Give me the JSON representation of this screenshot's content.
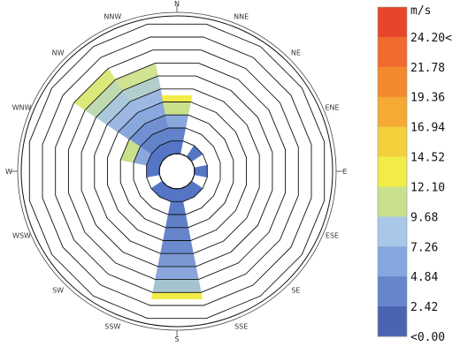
{
  "chart_data": {
    "type": "wind-rose",
    "directions": [
      "N",
      "NNE",
      "NE",
      "ENE",
      "E",
      "ESE",
      "SE",
      "SSE",
      "S",
      "SSW",
      "SW",
      "WSW",
      "W",
      "WNW",
      "NW",
      "NNW"
    ],
    "radial_ring_count": 10,
    "legend": {
      "unit": "m/s",
      "labels": [
        "24.20<",
        "21.78",
        "19.36",
        "16.94",
        "14.52",
        "12.10",
        "9.68",
        "7.26",
        "4.84",
        "2.42",
        "<0.00"
      ],
      "colors": [
        "#e8462a",
        "#ef6a2c",
        "#f2892f",
        "#f4aa33",
        "#f4cf3c",
        "#f1ec48",
        "#c9e08d",
        "#a9c7e8",
        "#84a7df",
        "#6685cb",
        "#4b64b2"
      ]
    },
    "petals": [
      {
        "direction": "S",
        "rings": 8.5,
        "colors": [
          "#5576c4",
          "#5a7ac5",
          "#5f7fc7",
          "#6584ca",
          "#6a8acd",
          "#7b98d4",
          "#8aa6dc",
          "#a6c4d0",
          "#f1ec48"
        ]
      },
      {
        "direction": "NW",
        "rings": 8.0,
        "colors": [
          "#5576c4",
          "#6282ca",
          "#7290d2",
          "#8aa8de",
          "#9cb8e3",
          "#aac8dc",
          "#bfdab0",
          "#dbe87a",
          "#f1ec48"
        ]
      },
      {
        "direction": "NNW",
        "rings": 7.0,
        "colors": [
          "#5576c4",
          "#6282ca",
          "#7290d2",
          "#8aa8de",
          "#9cb8e3",
          "#b2cfcd",
          "#d0e390",
          "#f1ec48"
        ]
      },
      {
        "direction": "WNW",
        "rings": 3.0,
        "colors": [
          "#5576c4",
          "#8aa8de",
          "#c9e08d"
        ]
      },
      {
        "direction": "N",
        "rings": 4.5,
        "colors": [
          "#5576c4",
          "#6282ca",
          "#8aa8de",
          "#c9e08d",
          "#f1ec48"
        ]
      },
      {
        "direction": "E",
        "rings": 1.0,
        "colors": [
          "#5576c4"
        ]
      },
      {
        "direction": "SE",
        "rings": 1.0,
        "colors": [
          "#5576c4"
        ]
      },
      {
        "direction": "SW",
        "rings": 1.0,
        "colors": [
          "#5576c4"
        ]
      },
      {
        "direction": "W",
        "rings": 1.0,
        "colors": [
          "#5576c4"
        ]
      },
      {
        "direction": "NE",
        "rings": 1.0,
        "colors": [
          "#5576c4"
        ]
      },
      {
        "direction": "SSE",
        "rings": 1.0,
        "colors": [
          "#5576c4"
        ]
      },
      {
        "direction": "SSW",
        "rings": 1.0,
        "colors": [
          "#5576c4"
        ]
      }
    ]
  }
}
